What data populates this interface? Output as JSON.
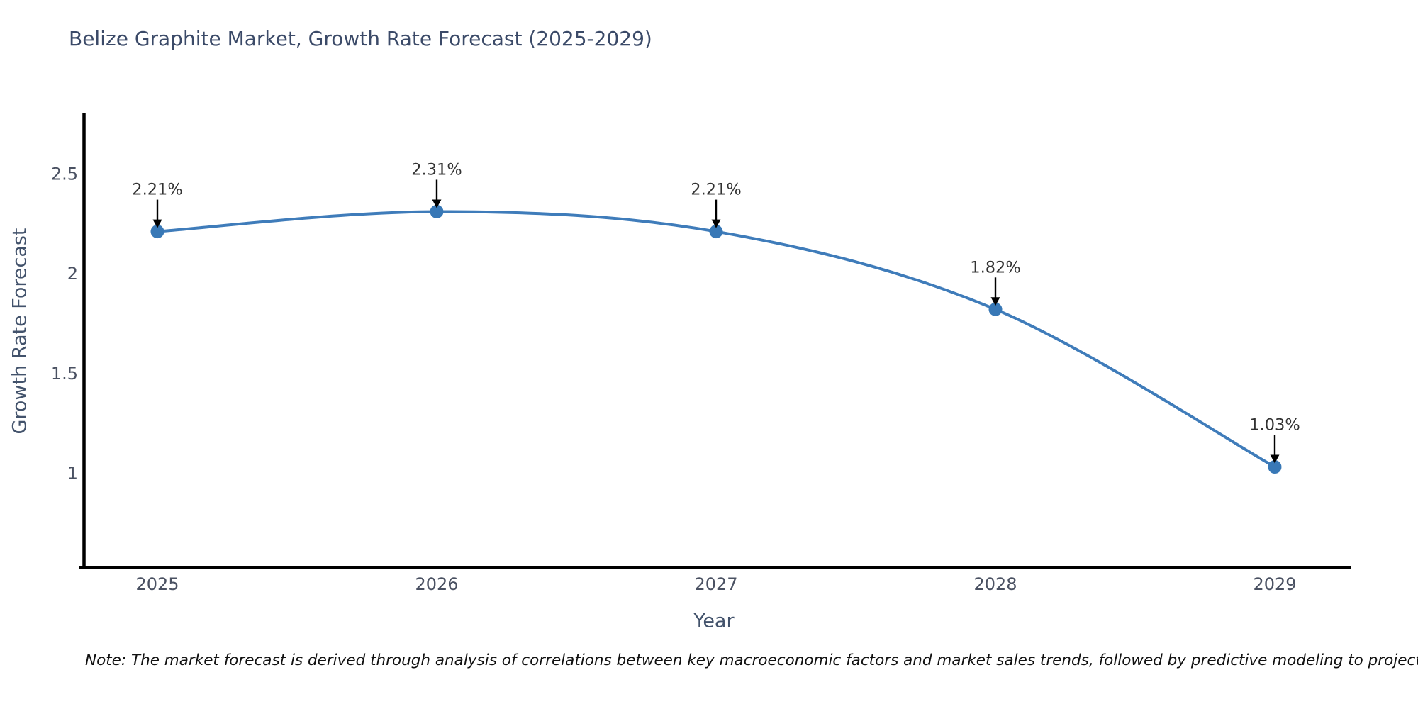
{
  "title": "Belize Graphite Market, Growth Rate Forecast (2025-2029)",
  "note": "Note: The market forecast is derived through analysis of correlations between key macroeconomic factors and market sales trends, followed by predictive modeling to project future sales",
  "chart_data": {
    "type": "line",
    "title": "Belize Graphite Market, Growth Rate Forecast (2025-2029)",
    "xlabel": "Year",
    "ylabel": "Growth Rate Forecast",
    "categories": [
      "2025",
      "2026",
      "2027",
      "2028",
      "2029"
    ],
    "values": [
      2.21,
      2.31,
      2.21,
      1.82,
      1.03
    ],
    "point_labels": [
      "2.21%",
      "2.31%",
      "2.21%",
      "1.82%",
      "1.03%"
    ],
    "yticks": [
      "2.5",
      "2",
      "1.5",
      "1"
    ],
    "ytick_values": [
      2.5,
      2,
      1.5,
      1
    ],
    "ylim": [
      0.53,
      2.8
    ],
    "grid": false,
    "legend": "none",
    "curve": "spline",
    "line_color": "#3f7cba",
    "marker_color": "#3878b6",
    "annotation_color": "#000000",
    "annotation_text_color": "#333333",
    "axis_color": "#000000",
    "tick_color": "#4a5162"
  }
}
